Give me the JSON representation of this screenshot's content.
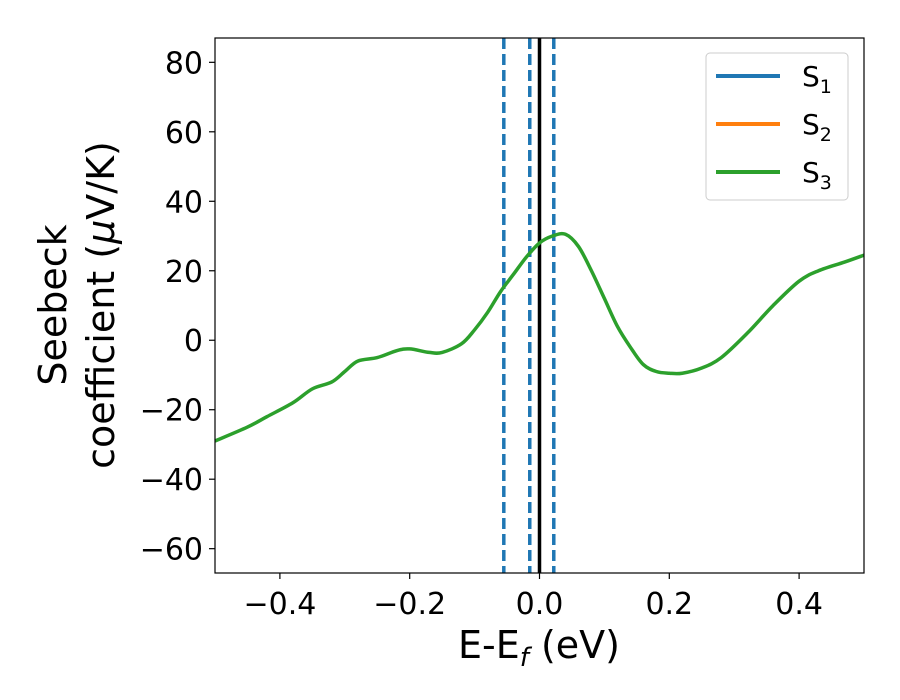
{
  "chart_data": {
    "type": "line",
    "xlabel": {
      "main": "E-E",
      "sub": "f",
      "unit": " (eV)"
    },
    "ylabel": {
      "line1": "Seebeck",
      "line2_prefix": "coefficient  (",
      "mu": "μ",
      "line2_suffix": "V/K)"
    },
    "xlim": [
      -0.5,
      0.5
    ],
    "ylim": [
      -67,
      87
    ],
    "x_ticks": [
      -0.4,
      -0.2,
      0.0,
      0.2,
      0.4
    ],
    "x_tick_labels": [
      "−0.4",
      "−0.2",
      "0.0",
      "0.2",
      "0.4"
    ],
    "y_ticks": [
      -60,
      -40,
      -20,
      0,
      20,
      40,
      60,
      80
    ],
    "y_tick_labels": [
      "−60",
      "−40",
      "−20",
      "0",
      "20",
      "40",
      "60",
      "80"
    ],
    "legend_position": "top-right",
    "series": [
      {
        "name_main": "S",
        "name_sub": "1",
        "color": "#1f77b4"
      },
      {
        "name_main": "S",
        "name_sub": "2",
        "color": "#ff7f0e"
      },
      {
        "name_main": "S",
        "name_sub": "3",
        "color": "#2ca02c",
        "x": [
          -0.5,
          -0.45,
          -0.42,
          -0.38,
          -0.35,
          -0.32,
          -0.3,
          -0.28,
          -0.25,
          -0.22,
          -0.2,
          -0.17,
          -0.15,
          -0.12,
          -0.1,
          -0.08,
          -0.06,
          -0.04,
          -0.02,
          0.0,
          0.02,
          0.04,
          0.06,
          0.08,
          0.1,
          0.12,
          0.14,
          0.16,
          0.18,
          0.2,
          0.22,
          0.25,
          0.28,
          0.32,
          0.36,
          0.4,
          0.43,
          0.47,
          0.5
        ],
        "y": [
          -29,
          -25,
          -22,
          -18,
          -14,
          -12,
          -9,
          -6,
          -5,
          -3,
          -2.5,
          -3.5,
          -3.5,
          -1,
          3,
          8,
          14,
          19,
          24,
          28,
          30,
          30.5,
          27,
          20,
          12,
          4,
          -2,
          -7,
          -9,
          -9.5,
          -9.5,
          -8,
          -5,
          2,
          10,
          17,
          20,
          22.5,
          24.5
        ]
      }
    ],
    "vertical_lines": [
      {
        "x": -0.055,
        "style": "dashed",
        "color": "#1f77b4"
      },
      {
        "x": -0.015,
        "style": "dashed",
        "color": "#1f77b4"
      },
      {
        "x": 0.0,
        "style": "solid",
        "color": "#000000"
      },
      {
        "x": 0.022,
        "style": "dashed",
        "color": "#1f77b4"
      }
    ]
  }
}
